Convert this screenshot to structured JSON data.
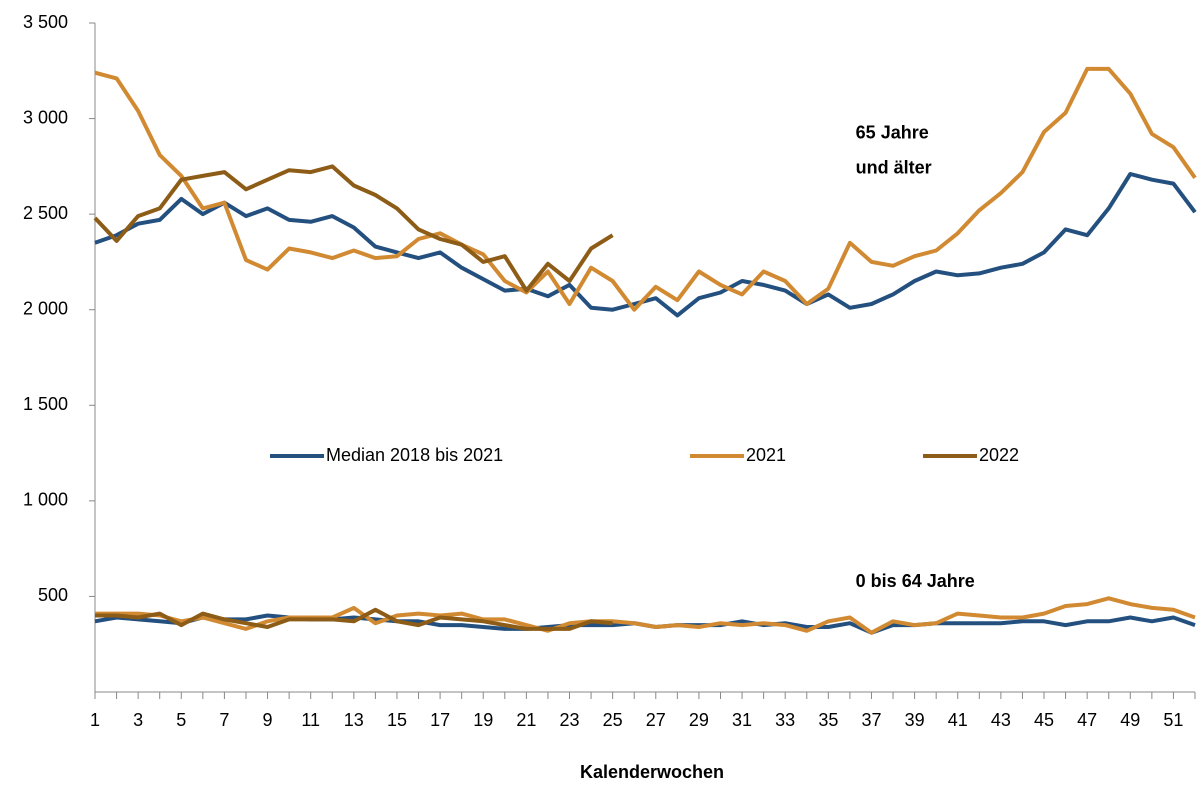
{
  "chart_data": {
    "type": "line",
    "x_label": "Kalenderwochen",
    "x": [
      1,
      2,
      3,
      4,
      5,
      6,
      7,
      8,
      9,
      10,
      11,
      12,
      13,
      14,
      15,
      16,
      17,
      18,
      19,
      20,
      21,
      22,
      23,
      24,
      25,
      26,
      27,
      28,
      29,
      30,
      31,
      32,
      33,
      34,
      35,
      36,
      37,
      38,
      39,
      40,
      41,
      42,
      43,
      44,
      45,
      46,
      47,
      48,
      49,
      50,
      51,
      52
    ],
    "xlim": [
      1,
      52
    ],
    "xticks": [
      1,
      3,
      5,
      7,
      9,
      11,
      13,
      15,
      17,
      19,
      21,
      23,
      25,
      27,
      29,
      31,
      33,
      35,
      37,
      39,
      41,
      43,
      45,
      47,
      49,
      51
    ],
    "ylim": [
      0,
      3500
    ],
    "yticks": [
      500,
      {
        "value": 1000,
        "label": "1 000"
      },
      {
        "value": 1500,
        "label": "1 500"
      },
      {
        "value": 2000,
        "label": "2 000"
      },
      {
        "value": 2500,
        "label": "2 500"
      },
      {
        "value": 3000,
        "label": "3 000"
      },
      {
        "value": 3500,
        "label": "3 500"
      }
    ],
    "grid": false,
    "annotations": [
      {
        "lines": [
          "65 Jahre",
          "und älter"
        ],
        "x": 36.5,
        "y": 2920
      },
      {
        "lines": [
          "0 bis 64 Jahre"
        ],
        "x": 36.5,
        "y": 575
      }
    ],
    "series": [
      {
        "name": "Median 2018 bis 2021",
        "color": "#24507f",
        "values": [
          2350,
          2390,
          2450,
          2470,
          2580,
          2500,
          2560,
          2490,
          2530,
          2470,
          2460,
          2490,
          2430,
          2330,
          2300,
          2270,
          2300,
          2220,
          2160,
          2100,
          2110,
          2070,
          2130,
          2010,
          2000,
          2030,
          2060,
          1970,
          2060,
          2090,
          2150,
          2130,
          2100,
          2030,
          2080,
          2010,
          2030,
          2080,
          2150,
          2200,
          2180,
          2190,
          2220,
          2240,
          2300,
          2420,
          2390,
          2530,
          2710,
          2680,
          2660,
          2510
        ],
        "values_0_64": [
          370,
          390,
          380,
          370,
          360,
          390,
          380,
          380,
          400,
          390,
          380,
          380,
          390,
          380,
          370,
          370,
          350,
          350,
          340,
          330,
          330,
          340,
          350,
          350,
          350,
          360,
          340,
          350,
          350,
          350,
          370,
          350,
          360,
          340,
          340,
          360,
          310,
          350,
          350,
          360,
          360,
          360,
          360,
          370,
          370,
          350,
          370,
          370,
          390,
          370,
          390,
          350
        ]
      },
      {
        "name": "2021",
        "color": "#d18a32",
        "values": [
          3240,
          3210,
          3040,
          2810,
          2700,
          2530,
          2560,
          2260,
          2210,
          2320,
          2300,
          2270,
          2310,
          2270,
          2280,
          2370,
          2400,
          2340,
          2290,
          2150,
          2090,
          2200,
          2030,
          2220,
          2150,
          2000,
          2120,
          2050,
          2200,
          2130,
          2080,
          2200,
          2150,
          2030,
          2110,
          2350,
          2250,
          2230,
          2280,
          2310,
          2400,
          2520,
          2610,
          2720,
          2930,
          3030,
          3260,
          3260,
          3130,
          2920,
          2850,
          2690
        ],
        "values_0_64": [
          410,
          410,
          410,
          400,
          370,
          390,
          360,
          330,
          370,
          390,
          390,
          390,
          440,
          360,
          400,
          410,
          400,
          410,
          380,
          380,
          350,
          320,
          360,
          370,
          370,
          360,
          340,
          350,
          340,
          360,
          350,
          360,
          350,
          320,
          370,
          390,
          310,
          370,
          350,
          360,
          410,
          400,
          390,
          390,
          410,
          450,
          460,
          490,
          460,
          440,
          430,
          390
        ]
      },
      {
        "name": "2022",
        "color": "#8d5c17",
        "values": [
          2480,
          2360,
          2490,
          2530,
          2680,
          2700,
          2720,
          2630,
          2680,
          2730,
          2720,
          2750,
          2650,
          2600,
          2530,
          2420,
          2370,
          2340,
          2250,
          2280,
          2100,
          2240,
          2150,
          2320,
          2390,
          null,
          null,
          null,
          null,
          null,
          null,
          null,
          null,
          null,
          null,
          null,
          null,
          null,
          null,
          null,
          null,
          null,
          null,
          null,
          null,
          null,
          null,
          null,
          null,
          null,
          null,
          null
        ],
        "values_0_64": [
          400,
          400,
          390,
          410,
          350,
          410,
          380,
          360,
          340,
          380,
          380,
          380,
          370,
          430,
          370,
          350,
          390,
          380,
          370,
          350,
          330,
          330,
          330,
          370,
          360,
          null,
          null,
          null,
          null,
          null,
          null,
          null,
          null,
          null,
          null,
          null,
          null,
          null,
          null,
          null,
          null,
          null,
          null,
          null,
          null,
          null,
          null,
          null,
          null,
          null,
          null,
          null
        ]
      }
    ]
  }
}
